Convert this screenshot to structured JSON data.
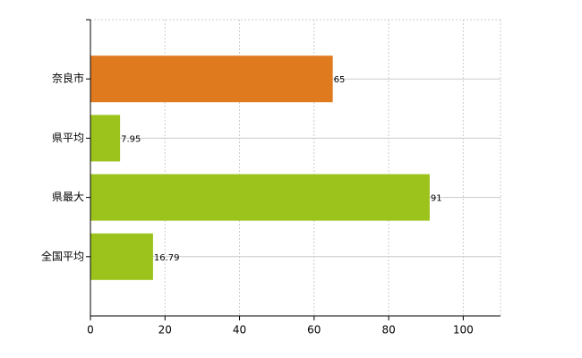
{
  "chart_data": {
    "type": "bar",
    "orientation": "horizontal",
    "categories": [
      "奈良市",
      "県平均",
      "県最大",
      "全国平均"
    ],
    "values": [
      65,
      7.95,
      91,
      16.79
    ],
    "colors": [
      "#e07a1f",
      "#9cc31b",
      "#9cc31b",
      "#9cc31b"
    ],
    "xlim": [
      0,
      110
    ],
    "xticks": [
      0,
      20,
      40,
      60,
      80,
      100
    ],
    "grid": true
  }
}
